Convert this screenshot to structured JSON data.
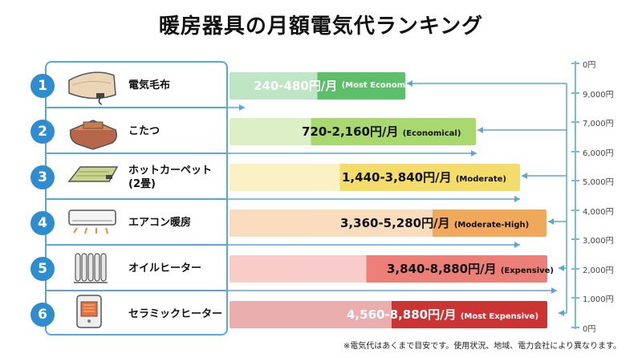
{
  "title": "暖房器具の月額電気代ランキング",
  "note": "※電気代はあくまで目安です。使用状況、地域、電力会社により異なります。",
  "chart_data": {
    "type": "bar",
    "orientation": "horizontal",
    "title": "暖房器具の月額電気代ランキング",
    "rows": [
      {
        "rank": "1",
        "name": "電気毛布",
        "range": "240-480円/月",
        "note": "(Most Economical)",
        "min": 240,
        "max": 480,
        "color": "#5cbf6a"
      },
      {
        "rank": "2",
        "name": "こたつ",
        "range": "720-2,160円/月",
        "note": "(Economical)",
        "min": 720,
        "max": 2160,
        "color": "#a9d86e"
      },
      {
        "rank": "3",
        "name": "ホットカーペット\n(2畳)",
        "range": "1,440-3,840円/月",
        "note": "(Moderate)",
        "min": 1440,
        "max": 3840,
        "color": "#f3dc6a"
      },
      {
        "rank": "4",
        "name": "エアコン暖房",
        "range": "3,360-5,280円/月",
        "note": "(Moderate-High)",
        "min": 3360,
        "max": 5280,
        "color": "#f0a95a"
      },
      {
        "rank": "5",
        "name": "オイルヒーター",
        "range": "3,840-8,880円/月",
        "note": "(Expensive)",
        "min": 3840,
        "max": 8880,
        "color": "#ec8079"
      },
      {
        "rank": "6",
        "name": "セラミックヒーター",
        "range": "4,560-8,880円/月",
        "note": "(Most Expensive)",
        "min": 4560,
        "max": 8880,
        "color": "#cc3333"
      }
    ],
    "scale_ticks": [
      "0円",
      "9,000円",
      "7,000円",
      "6,000円",
      "5,000円",
      "4,000円",
      "3,000円",
      "2,000円",
      "1,000円",
      "0円"
    ]
  }
}
